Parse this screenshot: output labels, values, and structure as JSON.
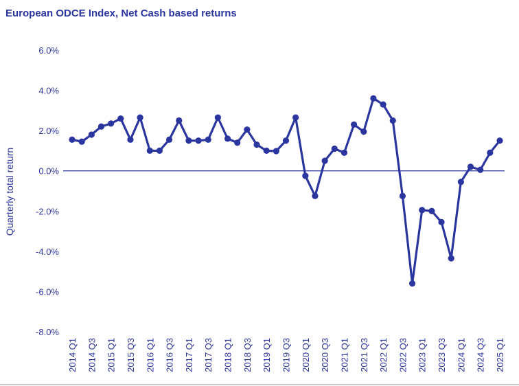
{
  "chart_data": {
    "type": "line",
    "title": "European ODCE Index, Net Cash based returns",
    "xlabel": "",
    "ylabel": "Quarterly total return",
    "ylim": [
      -8.0,
      6.0
    ],
    "yticks": [
      "6.0%",
      "4.0%",
      "2.0%",
      "0.0%",
      "-2.0%",
      "-4.0%",
      "-6.0%",
      "-8.0%"
    ],
    "ytick_values": [
      6,
      4,
      2,
      0,
      -2,
      -4,
      -6,
      -8
    ],
    "x_tick_labels": [
      "2014 Q1",
      "2014 Q3",
      "2015 Q1",
      "2015 Q3",
      "2016 Q1",
      "2016 Q3",
      "2017 Q1",
      "2017 Q3",
      "2018 Q1",
      "2018 Q3",
      "2019 Q1",
      "2019 Q3",
      "2020 Q1",
      "2020 Q3",
      "2021 Q1",
      "2021 Q3",
      "2022 Q1",
      "2022 Q3",
      "2023 Q1",
      "2023 Q3",
      "2024 Q1",
      "2024 Q3",
      "2025 Q1"
    ],
    "categories": [
      "2014 Q1",
      "2014 Q2",
      "2014 Q3",
      "2014 Q4",
      "2015 Q1",
      "2015 Q2",
      "2015 Q3",
      "2015 Q4",
      "2016 Q1",
      "2016 Q2",
      "2016 Q3",
      "2016 Q4",
      "2017 Q1",
      "2017 Q2",
      "2017 Q3",
      "2017 Q4",
      "2018 Q1",
      "2018 Q2",
      "2018 Q3",
      "2018 Q4",
      "2019 Q1",
      "2019 Q2",
      "2019 Q3",
      "2019 Q4",
      "2020 Q1",
      "2020 Q2",
      "2020 Q3",
      "2020 Q4",
      "2021 Q1",
      "2021 Q2",
      "2021 Q3",
      "2021 Q4",
      "2022 Q1",
      "2022 Q2",
      "2022 Q3",
      "2022 Q4",
      "2023 Q1",
      "2023 Q2",
      "2023 Q3",
      "2023 Q4",
      "2024 Q1",
      "2024 Q2",
      "2024 Q3",
      "2024 Q4",
      "2025 Q1"
    ],
    "series": [
      {
        "values": [
          1.55,
          1.45,
          1.8,
          2.2,
          2.35,
          2.6,
          1.55,
          2.65,
          1.0,
          1.0,
          1.55,
          2.5,
          1.5,
          1.5,
          1.55,
          2.65,
          1.6,
          1.4,
          2.05,
          1.3,
          1.0,
          0.98,
          1.5,
          2.65,
          -0.25,
          -1.25,
          0.5,
          1.1,
          0.9,
          2.3,
          1.95,
          3.6,
          3.3,
          2.5,
          -1.25,
          -5.6,
          -1.95,
          -2.0,
          -2.55,
          -4.35,
          -0.55,
          0.2,
          0.05,
          0.9,
          1.5
        ]
      }
    ],
    "grid": false,
    "legend": "none",
    "colors": {
      "line": "#2b35a0",
      "text": "#2b35a0",
      "zero_line": "#2b35a0"
    }
  }
}
